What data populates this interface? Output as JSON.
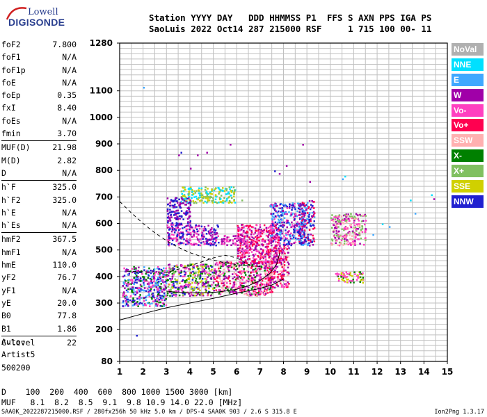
{
  "logo": {
    "line1": "Lowell",
    "line2": "DIGISONDE"
  },
  "header": {
    "line1": "Station YYYY DAY   DDD HHMMSS P1  FFS S AXN PPS IGA PS",
    "line2": "SaoLuis 2022 Oct14 287 215000 RSF     1 715 100 00- 11"
  },
  "params": [
    {
      "name": "foF2",
      "value": "7.800"
    },
    {
      "name": "foF1",
      "value": "N/A"
    },
    {
      "name": "foF1p",
      "value": "N/A"
    },
    {
      "name": "foE",
      "value": "N/A"
    },
    {
      "name": "foEp",
      "value": "0.35"
    },
    {
      "name": "fxI",
      "value": "8.40"
    },
    {
      "name": "foEs",
      "value": "N/A"
    },
    {
      "name": "fmin",
      "value": "3.70"
    },
    {
      "name": "MUF(D)",
      "value": "21.98"
    },
    {
      "name": "M(D)",
      "value": "2.82"
    },
    {
      "name": "D",
      "value": "N/A"
    },
    {
      "name": "h`F",
      "value": "325.0"
    },
    {
      "name": "h`F2",
      "value": "325.0"
    },
    {
      "name": "h`E",
      "value": "N/A"
    },
    {
      "name": "h`Es",
      "value": "N/A"
    },
    {
      "name": "hmF2",
      "value": "367.5"
    },
    {
      "name": "hmF1",
      "value": "N/A"
    },
    {
      "name": "hmE",
      "value": "110.0"
    },
    {
      "name": "yF2",
      "value": "76.7"
    },
    {
      "name": "yF1",
      "value": "N/A"
    },
    {
      "name": "yE",
      "value": "20.0"
    },
    {
      "name": "B0",
      "value": "77.8"
    },
    {
      "name": "B1",
      "value": "1.86"
    },
    {
      "name": "C-level",
      "value": "22"
    }
  ],
  "footer": {
    "auto": "Auto:",
    "artist": "Artist5",
    "version": "500200"
  },
  "scale": {
    "d_line": "D    100  200  400  600  800 1000 1500 3000 [km]",
    "muf_line": "MUF   8.1  8.2  8.5  9.1  9.8 10.9 14.0 22.0 [MHz]"
  },
  "bottom": {
    "left": "SAA0K_2022287215000.RSF / 280fx256h 50 kHz 5.0 km / DPS-4 SAA0K 903 / 2.6 S 315.8 E",
    "right": "Ion2Png 1.3.17"
  },
  "legend": [
    {
      "label": "NoVal",
      "color": "#b0b0b0"
    },
    {
      "label": "NNE",
      "color": "#00e0ff"
    },
    {
      "label": "E",
      "color": "#40a8ff"
    },
    {
      "label": "W",
      "color": "#a000a8"
    },
    {
      "label": "Vo-",
      "color": "#ff40c0"
    },
    {
      "label": "Vo+",
      "color": "#ff0050"
    },
    {
      "label": "SSW",
      "color": "#ffb0b0"
    },
    {
      "label": "X-",
      "color": "#008000"
    },
    {
      "label": "X+",
      "color": "#80c060"
    },
    {
      "label": "SSE",
      "color": "#d0d000"
    },
    {
      "label": "NNW",
      "color": "#2020d0"
    }
  ],
  "chart_data": {
    "type": "scatter",
    "xlim": [
      1,
      15
    ],
    "ylim": [
      80,
      1280
    ],
    "x_ticks": [
      "1",
      "2",
      "3",
      "4",
      "5",
      "6",
      "7",
      "8",
      "9",
      "10",
      "11",
      "12",
      "13",
      "14",
      "15"
    ],
    "y_ticks": [
      {
        "label": "1280",
        "value": 1280
      },
      {
        "label": "1100",
        "value": 1100
      },
      {
        "label": "1000",
        "value": 1000
      },
      {
        "label": "900",
        "value": 900
      },
      {
        "label": "800",
        "value": 800
      },
      {
        "label": "700",
        "value": 700
      },
      {
        "label": "600",
        "value": 600
      },
      {
        "label": "500",
        "value": 500
      },
      {
        "label": "400",
        "value": 400
      },
      {
        "label": "300",
        "value": 300
      },
      {
        "label": "200",
        "value": 200
      },
      {
        "label": "80",
        "value": 80
      }
    ],
    "grid": true,
    "echo_clusters": [
      {
        "x": [
          1.1,
          3.0
        ],
        "y": [
          290,
          440
        ],
        "colors": [
          "#2020d0",
          "#a000a8",
          "#ff40c0",
          "#008000",
          "#40a8ff"
        ]
      },
      {
        "x": [
          3.0,
          5.0
        ],
        "y": [
          330,
          450
        ],
        "colors": [
          "#ff40c0",
          "#008000",
          "#80c060",
          "#d0d000",
          "#a000a8",
          "#2020d0"
        ]
      },
      {
        "x": [
          5.0,
          7.5
        ],
        "y": [
          330,
          460
        ],
        "colors": [
          "#ff40c0",
          "#ffb0b0",
          "#ff0050",
          "#008000",
          "#a000a8"
        ]
      },
      {
        "x": [
          7.2,
          8.2
        ],
        "y": [
          360,
          520
        ],
        "colors": [
          "#ff0050",
          "#ff40c0",
          "#ffb0b0",
          "#a000a8"
        ]
      },
      {
        "x": [
          3.0,
          5.2
        ],
        "y": [
          520,
          600
        ],
        "colors": [
          "#a000a8",
          "#ff40c0",
          "#2020d0"
        ]
      },
      {
        "x": [
          5.3,
          6.3
        ],
        "y": [
          520,
          560
        ],
        "colors": [
          "#a000a8",
          "#ff40c0"
        ]
      },
      {
        "x": [
          7.4,
          8.9
        ],
        "y": [
          520,
          680
        ],
        "colors": [
          "#40a8ff",
          "#ff40c0",
          "#a000a8",
          "#2020d0"
        ]
      },
      {
        "x": [
          8.6,
          9.3
        ],
        "y": [
          520,
          690
        ],
        "colors": [
          "#40a8ff",
          "#2020d0",
          "#a000a8",
          "#ff0050"
        ]
      },
      {
        "x": [
          10.0,
          11.5
        ],
        "y": [
          520,
          640
        ],
        "colors": [
          "#a000a8",
          "#ff40c0",
          "#80c060",
          "#ffb0b0"
        ]
      },
      {
        "x": [
          10.2,
          11.4
        ],
        "y": [
          380,
          420
        ],
        "colors": [
          "#d0d000",
          "#008000",
          "#ff40c0"
        ]
      },
      {
        "x": [
          3.6,
          5.9
        ],
        "y": [
          680,
          740
        ],
        "colors": [
          "#d0d000",
          "#80c060",
          "#00e0ff"
        ]
      },
      {
        "x": [
          3.0,
          4.0
        ],
        "y": [
          600,
          700
        ],
        "colors": [
          "#a000a8",
          "#2020d0"
        ]
      },
      {
        "x": [
          6.0,
          7.8
        ],
        "y": [
          450,
          600
        ],
        "colors": [
          "#a000a8",
          "#ff40c0",
          "#ff0050"
        ]
      }
    ],
    "sparse_points": [
      {
        "x": 2.0,
        "y": 1115,
        "color": "#40a8ff"
      },
      {
        "x": 1.7,
        "y": 180,
        "color": "#2020d0"
      },
      {
        "x": 5.7,
        "y": 900,
        "color": "#a000a8"
      },
      {
        "x": 8.8,
        "y": 900,
        "color": "#a000a8"
      },
      {
        "x": 9.1,
        "y": 760,
        "color": "#a000a8"
      },
      {
        "x": 10.5,
        "y": 770,
        "color": "#40a8ff"
      },
      {
        "x": 10.6,
        "y": 780,
        "color": "#00e0ff"
      },
      {
        "x": 12.2,
        "y": 600,
        "color": "#00e0ff"
      },
      {
        "x": 12.5,
        "y": 590,
        "color": "#40a8ff"
      },
      {
        "x": 13.4,
        "y": 690,
        "color": "#00e0ff"
      },
      {
        "x": 13.6,
        "y": 640,
        "color": "#40a8ff"
      },
      {
        "x": 14.3,
        "y": 710,
        "color": "#00e0ff"
      },
      {
        "x": 14.4,
        "y": 695,
        "color": "#a000a8"
      },
      {
        "x": 3.5,
        "y": 860,
        "color": "#a000a8"
      },
      {
        "x": 3.6,
        "y": 870,
        "color": "#2020d0"
      },
      {
        "x": 4.0,
        "y": 810,
        "color": "#a000a8"
      },
      {
        "x": 4.3,
        "y": 860,
        "color": "#a000a8"
      },
      {
        "x": 4.7,
        "y": 870,
        "color": "#a000a8"
      },
      {
        "x": 7.6,
        "y": 800,
        "color": "#2020d0"
      },
      {
        "x": 7.8,
        "y": 790,
        "color": "#a000a8"
      },
      {
        "x": 8.1,
        "y": 820,
        "color": "#a000a8"
      },
      {
        "x": 6.2,
        "y": 690,
        "color": "#80c060"
      },
      {
        "x": 11.8,
        "y": 560,
        "color": "#40a8ff"
      }
    ],
    "curves": [
      {
        "style": "dashed",
        "x": [
          1.0,
          1.5,
          2.0,
          2.5,
          3.0,
          3.5,
          4.0,
          4.5,
          5.0,
          5.5,
          6.0,
          6.5,
          7.0
        ],
        "y": [
          683,
          640,
          600,
          565,
          535,
          510,
          490,
          475,
          462,
          452,
          445,
          440,
          438
        ]
      },
      {
        "style": "solid",
        "x": [
          1.0,
          2.0,
          3.0,
          4.0,
          5.0,
          6.0,
          7.0,
          7.5,
          8.0
        ],
        "y": [
          236,
          260,
          282,
          300,
          318,
          337,
          355,
          368,
          390
        ]
      },
      {
        "style": "solid",
        "x": [
          3.0,
          3.5,
          4.0,
          4.5,
          5.0,
          5.5,
          6.0,
          6.5,
          7.0,
          7.4,
          7.7,
          7.85
        ],
        "y": [
          345,
          340,
          338,
          338,
          340,
          345,
          352,
          365,
          385,
          410,
          445,
          490
        ]
      },
      {
        "style": "dashed",
        "x": [
          1.3,
          2.0,
          3.0,
          4.0,
          5.0,
          5.5,
          6.0,
          6.6
        ],
        "y": [
          420,
          418,
          415,
          440,
          470,
          480,
          470,
          440
        ]
      }
    ]
  }
}
